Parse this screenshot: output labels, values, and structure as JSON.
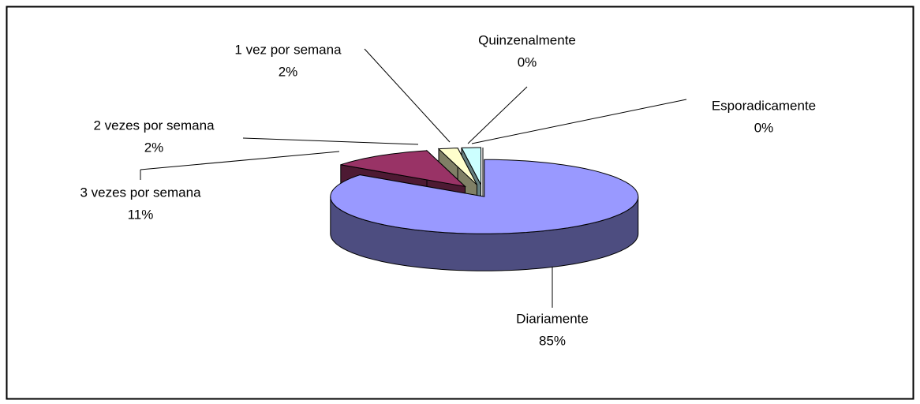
{
  "chart_data": {
    "type": "pie",
    "three_d": true,
    "categories": [
      "Diariamente",
      "3 vezes por semana",
      "2 vezes por semana",
      "1 vez por semana",
      "Quinzenalmente",
      "Esporadicamente"
    ],
    "values": [
      85,
      11,
      2,
      2,
      0,
      0
    ],
    "value_labels": [
      "85%",
      "11%",
      "2%",
      "2%",
      "0%",
      "0%"
    ],
    "colors": [
      "#9999ff",
      "#993366",
      "#ffffcc",
      "#ccffff",
      "#660066",
      "#ff8080"
    ]
  }
}
